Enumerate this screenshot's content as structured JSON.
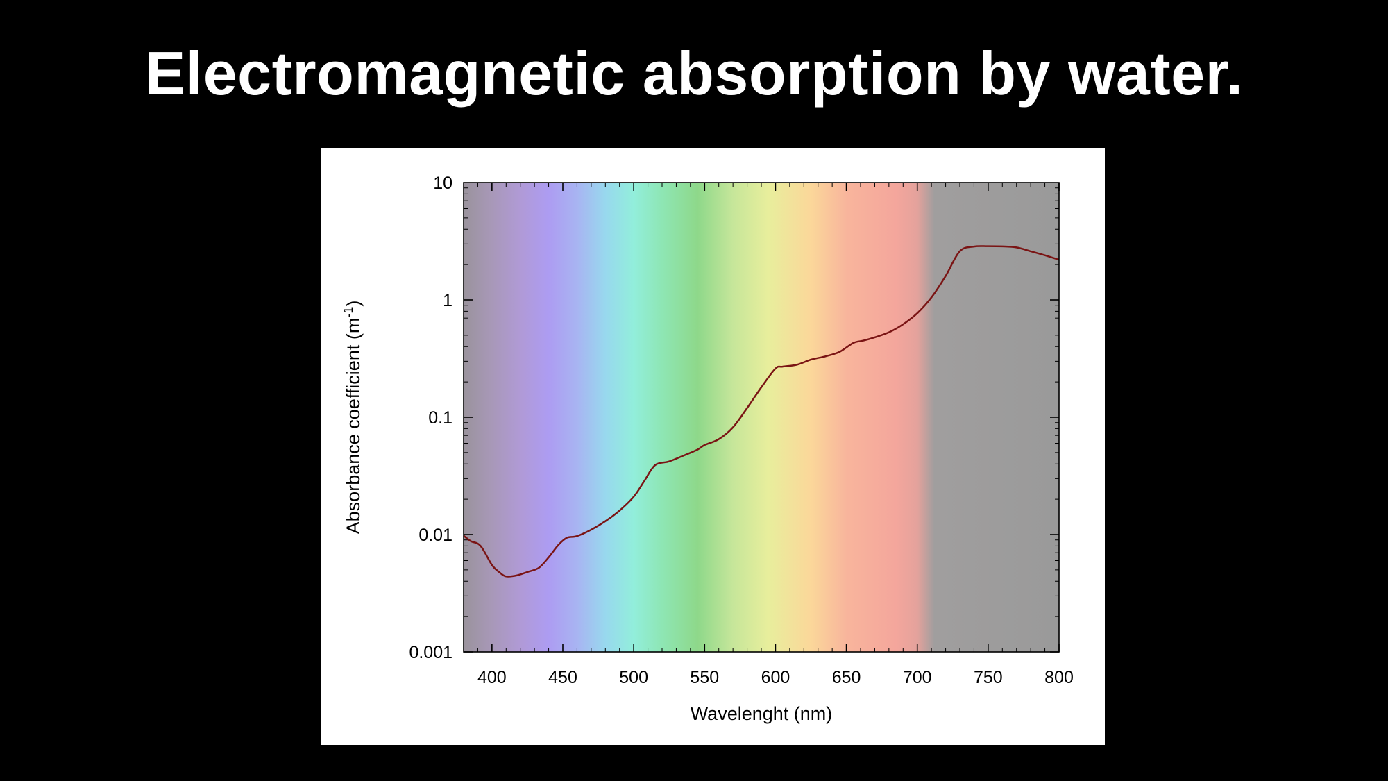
{
  "title": "Electromagnetic absorption by water.",
  "chart_data": {
    "type": "line",
    "xlabel": "Wavelenght (nm)",
    "ylabel": "Absorbance coefficient (m",
    "ylabel_superscript": "-1",
    "ylabel_close": ")",
    "xlim": [
      380,
      800
    ],
    "ylim": [
      0.001,
      10
    ],
    "yscale": "log",
    "grid": false,
    "x_ticks": [
      400,
      450,
      500,
      550,
      600,
      650,
      700,
      750,
      800
    ],
    "x_tick_labels": [
      "400",
      "450",
      "500",
      "550",
      "600",
      "650",
      "700",
      "750",
      "800"
    ],
    "y_ticks": [
      0.001,
      0.01,
      0.1,
      1,
      10
    ],
    "y_tick_labels": [
      "0.001",
      "0.01",
      "0.1",
      "1",
      "10"
    ],
    "background_spectrum": [
      {
        "x": 380,
        "color": "#9a939c"
      },
      {
        "x": 400,
        "color": "#a898b8"
      },
      {
        "x": 420,
        "color": "#b09ad6"
      },
      {
        "x": 440,
        "color": "#ad9cf2"
      },
      {
        "x": 460,
        "color": "#a8b4f2"
      },
      {
        "x": 480,
        "color": "#98d8ee"
      },
      {
        "x": 500,
        "color": "#92eedb"
      },
      {
        "x": 520,
        "color": "#8ee6b4"
      },
      {
        "x": 545,
        "color": "#8ed88a"
      },
      {
        "x": 570,
        "color": "#c6e69a"
      },
      {
        "x": 595,
        "color": "#e8ee9c"
      },
      {
        "x": 625,
        "color": "#fbd79a"
      },
      {
        "x": 650,
        "color": "#f8b59c"
      },
      {
        "x": 685,
        "color": "#f4a69c"
      },
      {
        "x": 700,
        "color": "#e4a29c"
      },
      {
        "x": 712,
        "color": "#a09e9e"
      },
      {
        "x": 800,
        "color": "#9a9a9a"
      }
    ],
    "series": [
      {
        "color": "#7a1414",
        "x": [
          380,
          385,
          392,
          400,
          405,
          410,
          418,
          425,
          433,
          440,
          447,
          453,
          460,
          470,
          480,
          490,
          500,
          507,
          515,
          525,
          535,
          545,
          550,
          560,
          570,
          580,
          590,
          600,
          605,
          615,
          625,
          635,
          645,
          655,
          662,
          670,
          680,
          690,
          700,
          710,
          720,
          730,
          740,
          750,
          760,
          770,
          780,
          790,
          800
        ],
        "y": [
          0.0098,
          0.0088,
          0.008,
          0.0055,
          0.0048,
          0.0044,
          0.0045,
          0.0048,
          0.0052,
          0.0064,
          0.0082,
          0.0094,
          0.0097,
          0.011,
          0.013,
          0.016,
          0.021,
          0.028,
          0.039,
          0.042,
          0.047,
          0.053,
          0.058,
          0.065,
          0.082,
          0.12,
          0.18,
          0.26,
          0.27,
          0.28,
          0.31,
          0.33,
          0.36,
          0.43,
          0.45,
          0.48,
          0.53,
          0.62,
          0.77,
          1.05,
          1.6,
          2.6,
          2.85,
          2.87,
          2.86,
          2.8,
          2.6,
          2.4,
          2.2
        ]
      }
    ]
  }
}
